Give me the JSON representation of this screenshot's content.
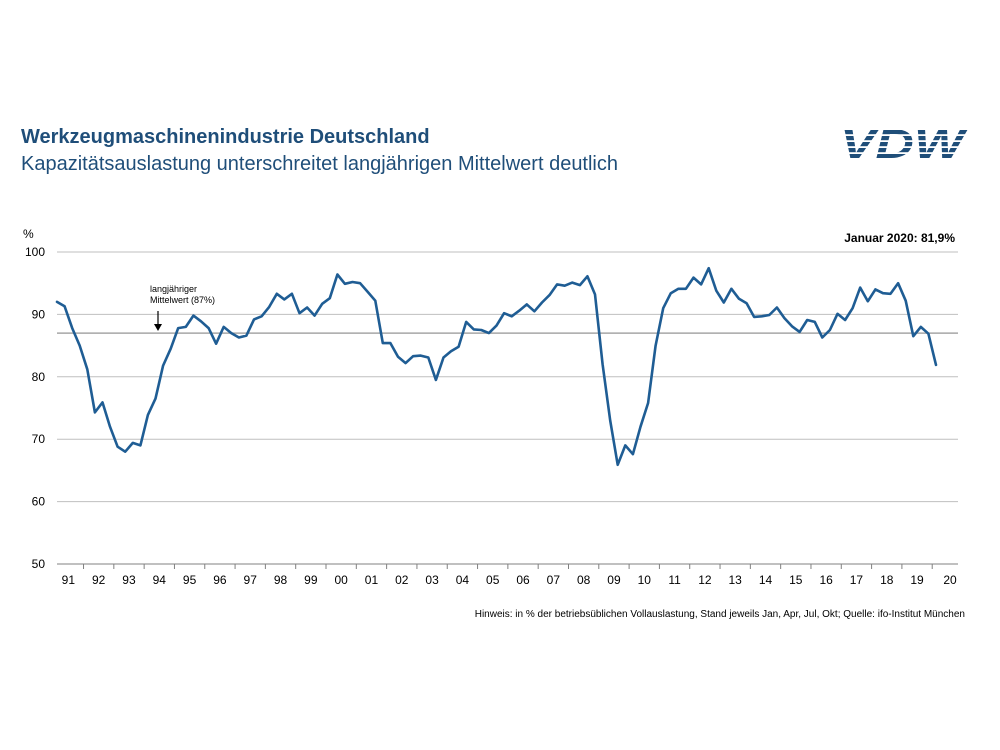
{
  "header": {
    "title": "Werkzeugmaschinenindustrie Deutschland",
    "subtitle": "Kapazitätsauslastung  unterschreitet langjährigen Mittelwert deutlich"
  },
  "logo": {
    "text": "VDW",
    "color": "#1f4e79"
  },
  "colors": {
    "line": "#1f5d94",
    "text_blue": "#1f4e79",
    "grid": "#bfbfbf",
    "mean_line": "#a6a6a6"
  },
  "footnote": "Hinweis: in % der betriebsüblichen Vollauslastung, Stand jeweils Jan, Apr, Jul, Okt;  Quelle: ifo-Institut München",
  "chart_data": {
    "type": "line",
    "title": "",
    "ylabel": "%",
    "ylim": [
      50,
      100
    ],
    "yticks": [
      50,
      60,
      70,
      80,
      90,
      100
    ],
    "grid": true,
    "xticks": [
      "91",
      "92",
      "93",
      "94",
      "95",
      "96",
      "97",
      "98",
      "99",
      "00",
      "01",
      "02",
      "03",
      "04",
      "05",
      "06",
      "07",
      "08",
      "09",
      "10",
      "11",
      "12",
      "13",
      "14",
      "15",
      "16",
      "17",
      "18",
      "19",
      "20"
    ],
    "x_range": [
      "1991-01",
      "2020-01"
    ],
    "frequency": "quarterly",
    "mean_value": 87,
    "annotation": {
      "text_line1": "langjähriger",
      "text_line2": "Mittelwert  (87%)"
    },
    "latest_label": "Januar 2020: 81,9%",
    "series": [
      {
        "values": [
          92,
          91.3,
          87.8,
          85,
          81.2,
          74.3,
          75.9,
          72,
          68.8,
          68,
          69.4,
          69,
          73.9,
          76.5,
          81.8,
          84.5,
          87.8,
          88,
          89.8,
          88.9,
          87.8,
          85.3,
          88,
          87,
          86.3,
          86.6,
          89.2,
          89.7,
          91.2,
          93.3,
          92.4,
          93.3,
          90.2,
          91.1,
          89.8,
          91.7,
          92.6,
          96.4,
          94.9,
          95.2,
          95,
          93.6,
          92.2,
          85.4,
          85.4,
          83.2,
          82.2,
          83.3,
          83.4,
          83.1,
          79.5,
          83.1,
          84.1,
          84.8,
          88.8,
          87.6,
          87.5,
          87,
          88.2,
          90.2,
          89.7,
          90.6,
          91.6,
          90.5,
          91.9,
          93.1,
          94.8,
          94.6,
          95.1,
          94.7,
          96.1,
          93.2,
          82,
          73,
          65.9,
          69,
          67.6,
          72,
          75.8,
          85,
          91,
          93.4,
          94.1,
          94.1,
          95.9,
          94.8,
          97.4,
          93.8,
          91.9,
          94.1,
          92.5,
          91.8,
          89.6,
          89.7,
          89.9,
          91.1,
          89.4,
          88.1,
          87.2,
          89.1,
          88.8,
          86.3,
          87.5,
          90.1,
          89.1,
          91,
          94.3,
          92.1,
          94,
          93.4,
          93.3,
          95,
          92.2,
          86.5,
          88,
          86.9,
          81.9
        ]
      }
    ]
  }
}
